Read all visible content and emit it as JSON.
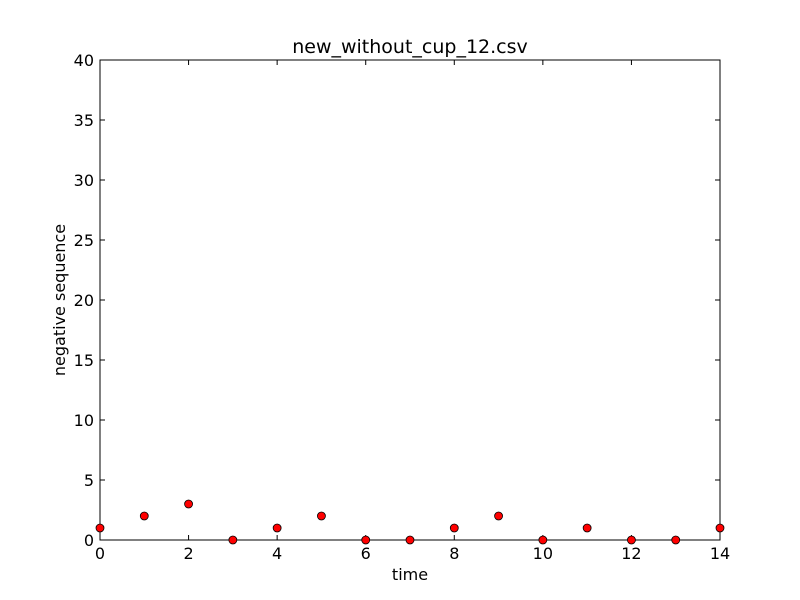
{
  "chart_data": {
    "type": "scatter",
    "title": "new_without_cup_12.csv",
    "xlabel": "time",
    "ylabel": "negative sequence",
    "xlim": [
      0,
      14
    ],
    "ylim": [
      0,
      40
    ],
    "xticks": [
      "0",
      "2",
      "4",
      "6",
      "8",
      "10",
      "12",
      "14"
    ],
    "yticks": [
      "0",
      "5",
      "10",
      "15",
      "20",
      "25",
      "30",
      "35",
      "40"
    ],
    "grid": false,
    "legend": false,
    "marker_color": "#ff0000",
    "marker_edge": "#000000",
    "series": [
      {
        "x": [
          0,
          1,
          2,
          3,
          4,
          5,
          6,
          7,
          8,
          9,
          10,
          11,
          12,
          13,
          14
        ],
        "y": [
          1,
          2,
          3,
          0,
          1,
          2,
          0,
          0,
          1,
          2,
          0,
          1,
          0,
          0,
          1
        ]
      }
    ]
  }
}
